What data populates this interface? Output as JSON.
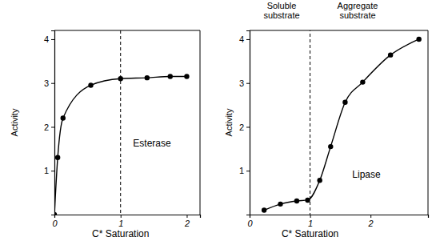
{
  "chart_data": [
    {
      "type": "line",
      "x_label": "C* Saturation",
      "y_label": "Activity",
      "annotations": [
        "Esterase"
      ],
      "x": [
        0,
        0.05,
        0.13,
        0.55,
        1.0,
        1.4,
        1.75,
        2.0
      ],
      "values": [
        0,
        1.3,
        2.2,
        2.95,
        3.1,
        3.12,
        3.15,
        3.15
      ],
      "vline": 1,
      "xlim": [
        0,
        2.2
      ],
      "xticks": [
        0,
        1,
        2
      ],
      "ylim": [
        0,
        4.2
      ],
      "yticks": [
        1,
        2,
        3,
        4
      ],
      "color": "#000000",
      "marker": "circle",
      "line_style": "solid"
    },
    {
      "type": "line",
      "x_label": "C* Saturation",
      "y_label": "Activity",
      "annotations": [
        "Soluble substrate",
        "Aggregate substrate",
        "Lipase"
      ],
      "x": [
        0.24,
        0.51,
        0.78,
        0.96,
        1.16,
        1.34,
        1.58,
        1.87,
        2.33,
        2.8
      ],
      "values": [
        0.1,
        0.24,
        0.31,
        0.33,
        0.78,
        1.55,
        2.56,
        3.02,
        3.64,
        4.0
      ],
      "vline": 1,
      "xlim": [
        0,
        2.95
      ],
      "xticks": [
        0,
        1,
        2
      ],
      "ylim": [
        0,
        4.2
      ],
      "yticks": [
        1,
        2,
        3,
        4
      ],
      "color": "#000000",
      "marker": "circle",
      "line_style": "solid"
    }
  ]
}
